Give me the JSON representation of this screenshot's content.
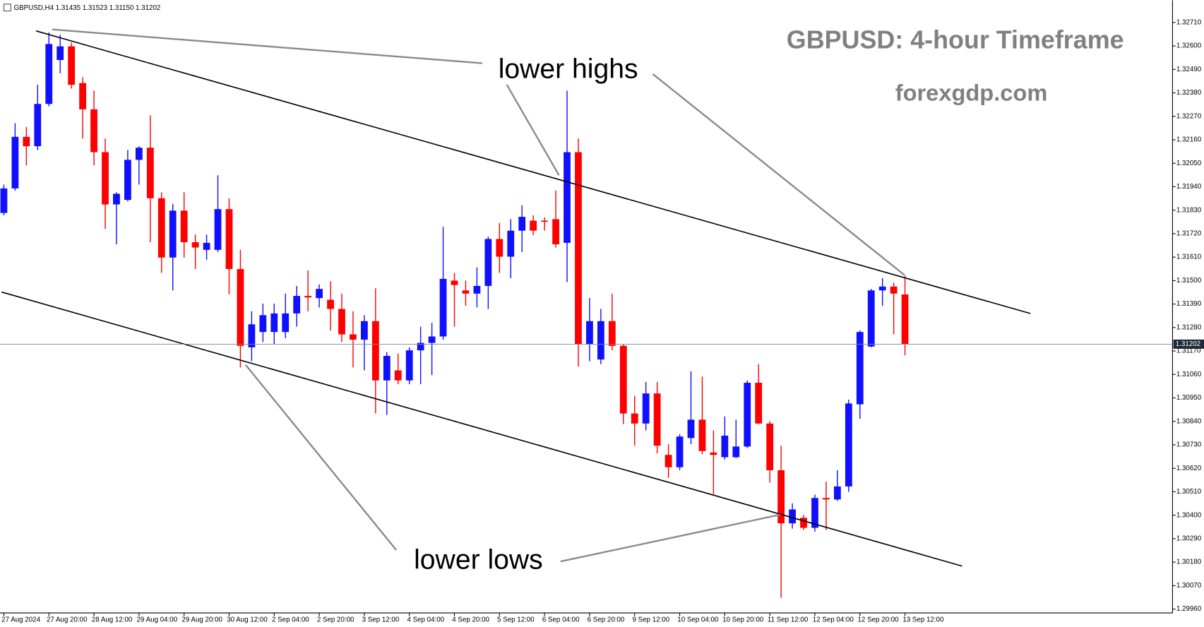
{
  "chart_data": {
    "type": "candlestick",
    "header": "GBPUSD,H4  1.31435 1.31523 1.31150 1.31202",
    "title": "GBPUSD: 4-hour Timeframe",
    "subtitle": "forexgdp.com",
    "annotations": [
      "lower highs",
      "lower lows"
    ],
    "up_color": "#1010ff",
    "down_color": "#ff0000",
    "current_price": 1.31202,
    "categories": [
      "27 Aug 2024",
      null,
      null,
      null,
      "27 Aug 20:00",
      null,
      null,
      null,
      "28 Aug 12:00",
      null,
      null,
      null,
      "29 Aug 04:00",
      null,
      null,
      null,
      "29 Aug 20:00",
      null,
      null,
      null,
      "30 Aug 12:00",
      null,
      null,
      null,
      "2 Sep 04:00",
      null,
      null,
      null,
      "2 Sep 20:00",
      null,
      null,
      null,
      "3 Sep 12:00",
      null,
      null,
      null,
      "4 Sep 04:00",
      null,
      null,
      null,
      "4 Sep 20:00",
      null,
      null,
      null,
      "5 Sep 12:00",
      null,
      null,
      null,
      "6 Sep 04:00",
      null,
      null,
      null,
      "6 Sep 20:00",
      null,
      null,
      null,
      "9 Sep 12:00",
      null,
      null,
      null,
      "10 Sep 04:00",
      null,
      null,
      null,
      "10 Sep 20:00",
      null,
      null,
      null,
      "11 Sep 12:00",
      null,
      null,
      null,
      "12 Sep 04:00",
      null,
      null,
      null,
      "12 Sep 20:00",
      null,
      null,
      null,
      "13 Sep 12:00"
    ],
    "open": [
      1.31817,
      1.31932,
      1.32174,
      1.3213,
      1.32328,
      1.32534,
      1.32598,
      1.32426,
      1.32303,
      1.32102,
      1.31857,
      1.31878,
      1.32066,
      1.32123,
      1.31886,
      1.31608,
      1.31828,
      1.3168,
      1.31644,
      1.31644,
      1.31835,
      1.31554,
      1.31187,
      1.31259,
      1.31259,
      1.31259,
      1.31346,
      1.31428,
      1.31418,
      1.3141,
      1.31367,
      1.31248,
      1.31223,
      1.3131,
      1.31032,
      1.31079,
      1.31032,
      1.31173,
      1.31208,
      1.31238,
      1.315,
      1.31454,
      1.31439,
      1.31475,
      1.31695,
      1.31612,
      1.31734,
      1.31781,
      1.31781,
      1.31788,
      1.31677,
      1.32102,
      1.31201,
      1.3113,
      1.3131,
      1.31194,
      1.30877,
      1.3083,
      1.30971,
      1.30683,
      1.30625,
      1.30762,
      1.30848,
      1.30694,
      1.30672,
      1.30672,
      1.30722,
      1.31021,
      1.3083,
      1.30611,
      1.30362,
      1.30388,
      1.30341,
      1.30481,
      1.30474,
      1.30535,
      1.3092,
      1.31191,
      1.31454,
      1.31472,
      1.31435
    ],
    "high": [
      1.3195,
      1.32238,
      1.3222,
      1.32418,
      1.32663,
      1.32652,
      1.32616,
      1.32454,
      1.3239,
      1.32166,
      1.31914,
      1.32112,
      1.3213,
      1.32274,
      1.31914,
      1.3186,
      1.31914,
      1.31716,
      1.31716,
      1.31994,
      1.31886,
      1.31644,
      1.31356,
      1.31392,
      1.31392,
      1.31439,
      1.31475,
      1.31547,
      1.31482,
      1.31497,
      1.31439,
      1.31356,
      1.31338,
      1.31464,
      1.31165,
      1.31158,
      1.31187,
      1.31284,
      1.31302,
      1.31752,
      1.31536,
      1.315,
      1.31562,
      1.31706,
      1.3177,
      1.31788,
      1.31853,
      1.31806,
      1.31796,
      1.31922,
      1.3239,
      1.32166,
      1.31418,
      1.31367,
      1.31439,
      1.31201,
      1.3096,
      1.31025,
      1.31025,
      1.30733,
      1.3078,
      1.31075,
      1.3105,
      1.30798,
      1.30863,
      1.30848,
      1.31032,
      1.31108,
      1.30841,
      1.30726,
      1.30456,
      1.30402,
      1.30496,
      1.30557,
      1.30611,
      1.30942,
      1.31266,
      1.31461,
      1.31511,
      1.3149,
      1.31523
    ],
    "low": [
      1.31806,
      1.31922,
      1.3204,
      1.32112,
      1.32317,
      1.32472,
      1.324,
      1.32166,
      1.3204,
      1.31742,
      1.3167,
      1.31871,
      1.3195,
      1.3168,
      1.31536,
      1.31454,
      1.31608,
      1.31554,
      1.31598,
      1.31634,
      1.31436,
      1.31093,
      1.31122,
      1.31212,
      1.31201,
      1.3123,
      1.31284,
      1.31356,
      1.31374,
      1.31266,
      1.31212,
      1.31093,
      1.31079,
      1.30877,
      1.3087,
      1.31014,
      1.31014,
      1.31014,
      1.31057,
      1.31223,
      1.31284,
      1.31382,
      1.31374,
      1.31367,
      1.31536,
      1.31511,
      1.31634,
      1.31713,
      1.31734,
      1.31655,
      1.31493,
      1.31097,
      1.31122,
      1.31108,
      1.31173,
      1.30827,
      1.30726,
      1.30798,
      1.3069,
      1.30575,
      1.30611,
      1.30733,
      1.30686,
      1.30499,
      1.30661,
      1.30668,
      1.30715,
      1.30827,
      1.30553,
      1.30013,
      1.30337,
      1.3033,
      1.30323,
      1.3033,
      1.30467,
      1.3051,
      1.30852,
      1.31187,
      1.31382,
      1.31248,
      1.3115
    ],
    "close": [
      1.31932,
      1.32174,
      1.3213,
      1.32328,
      1.32609,
      1.32598,
      1.32418,
      1.32303,
      1.32102,
      1.31857,
      1.31907,
      1.32066,
      1.32123,
      1.31886,
      1.31608,
      1.31828,
      1.3168,
      1.31655,
      1.31677,
      1.31835,
      1.31554,
      1.31194,
      1.31295,
      1.31338,
      1.31346,
      1.31346,
      1.31428,
      1.31421,
      1.31461,
      1.31367,
      1.31248,
      1.31223,
      1.3131,
      1.31032,
      1.31147,
      1.31032,
      1.31173,
      1.31208,
      1.31238,
      1.31508,
      1.31479,
      1.31439,
      1.31475,
      1.31695,
      1.31612,
      1.31734,
      1.31799,
      1.31734,
      1.31777,
      1.3167,
      1.32102,
      1.31201,
      1.3131,
      1.3131,
      1.31194,
      1.30877,
      1.3083,
      1.30971,
      1.30726,
      1.30625,
      1.30769,
      1.30848,
      1.30701,
      1.30683,
      1.30773,
      1.30722,
      1.31021,
      1.3083,
      1.30611,
      1.30362,
      1.30427,
      1.30341,
      1.30481,
      1.30474,
      1.30535,
      1.30924,
      1.31259,
      1.31454,
      1.31472,
      1.31439,
      1.31202
    ],
    "ylim": [
      1.29942,
      1.32807
    ],
    "yticks": [
      {
        "value": 1.3271,
        "label": "1.32710"
      },
      {
        "value": 1.326,
        "label": "1.32600"
      },
      {
        "value": 1.3249,
        "label": "1.32490"
      },
      {
        "value": 1.3238,
        "label": "1.32380"
      },
      {
        "value": 1.3227,
        "label": "1.32270"
      },
      {
        "value": 1.3216,
        "label": "1.32160"
      },
      {
        "value": 1.3205,
        "label": "1.32050"
      },
      {
        "value": 1.3194,
        "label": "1.31940"
      },
      {
        "value": 1.3183,
        "label": "1.31830"
      },
      {
        "value": 1.3172,
        "label": "1.31720"
      },
      {
        "value": 1.3161,
        "label": "1.31610"
      },
      {
        "value": 1.315,
        "label": "1.31500"
      },
      {
        "value": 1.3139,
        "label": "1.31390"
      },
      {
        "value": 1.3128,
        "label": "1.31280"
      },
      {
        "value": 1.3117,
        "label": "1.31170"
      },
      {
        "value": 1.3106,
        "label": "1.31060"
      },
      {
        "value": 1.3095,
        "label": "1.30950"
      },
      {
        "value": 1.3084,
        "label": "1.30840"
      },
      {
        "value": 1.3073,
        "label": "1.30730"
      },
      {
        "value": 1.3062,
        "label": "1.30620"
      },
      {
        "value": 1.3051,
        "label": "1.30510"
      },
      {
        "value": 1.304,
        "label": "1.30400"
      },
      {
        "value": 1.3029,
        "label": "1.30290"
      },
      {
        "value": 1.3018,
        "label": "1.30180"
      },
      {
        "value": 1.3007,
        "label": "1.30070"
      },
      {
        "value": 1.2996,
        "label": "1.29960"
      }
    ]
  }
}
